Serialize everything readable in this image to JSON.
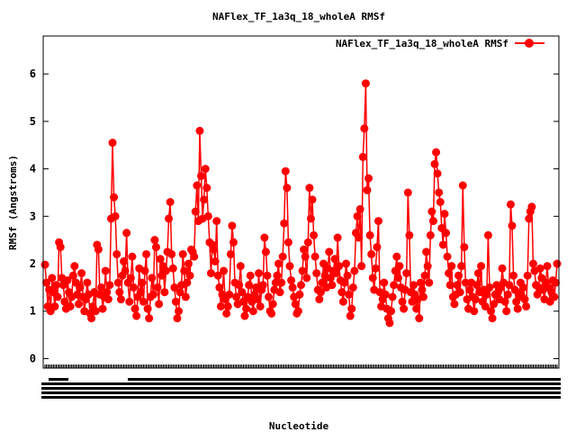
{
  "chart_data": {
    "type": "line",
    "title": "NAFlex_TF_1a3q_18_wholeA RMSf",
    "xlabel": "Nucleotide",
    "ylabel": "RMSf (Angstroms)",
    "ylim": [
      -0.2,
      6.8
    ],
    "yticks": [
      0,
      1,
      2,
      3,
      4,
      5,
      6
    ],
    "grid": false,
    "legend_position": "top-right",
    "x_tick_labels_legible": false,
    "series": [
      {
        "name": "NAFlex_TF_1a3q_18_wholeA RMSf",
        "color": "#ff0000",
        "values": [
          1.98,
          1.6,
          1.1,
          1.45,
          1.0,
          1.7,
          1.4,
          1.1,
          1.55,
          1.3,
          2.45,
          2.35,
          1.7,
          1.55,
          1.2,
          1.05,
          1.65,
          1.4,
          1.1,
          1.3,
          1.75,
          1.95,
          1.6,
          1.35,
          1.15,
          1.5,
          1.8,
          1.3,
          1.0,
          1.25,
          1.6,
          1.35,
          0.95,
          0.85,
          1.1,
          1.4,
          1.0,
          2.4,
          2.3,
          1.35,
          1.5,
          1.05,
          1.3,
          1.85,
          1.4,
          1.25,
          1.55,
          2.95,
          4.55,
          3.4,
          3.0,
          2.2,
          1.6,
          1.4,
          1.25,
          1.75,
          2.05,
          1.85,
          2.65,
          1.6,
          1.2,
          1.7,
          2.15,
          1.5,
          1.05,
          0.9,
          1.3,
          1.9,
          1.4,
          1.6,
          1.2,
          1.85,
          2.2,
          1.05,
          0.85,
          1.3,
          1.7,
          1.35,
          2.5,
          2.35,
          1.5,
          1.15,
          2.1,
          1.75,
          1.95,
          1.4,
          1.85,
          2.25,
          2.95,
          3.3,
          2.2,
          1.9,
          1.5,
          1.2,
          0.85,
          1.0,
          1.4,
          1.55,
          2.2,
          1.85,
          1.3,
          1.6,
          2.0,
          1.75,
          2.3,
          2.25,
          2.15,
          3.1,
          3.65,
          2.9,
          4.8,
          3.85,
          2.95,
          3.35,
          4.0,
          3.6,
          3.0,
          2.45,
          1.8,
          2.4,
          2.3,
          2.05,
          2.9,
          1.75,
          1.5,
          1.1,
          1.35,
          1.85,
          1.25,
          0.95,
          1.1,
          1.35,
          2.2,
          2.8,
          2.45,
          1.6,
          1.3,
          1.15,
          1.55,
          1.95,
          1.4,
          1.2,
          0.9,
          1.05,
          1.3,
          1.55,
          1.75,
          1.2,
          1.0,
          1.35,
          1.5,
          1.25,
          1.8,
          1.1,
          1.45,
          1.55,
          2.55,
          2.25,
          1.75,
          1.3,
          1.0,
          0.95,
          1.15,
          1.45,
          1.6,
          1.75,
          2.0,
          1.4,
          1.6,
          2.15,
          2.85,
          3.95,
          3.6,
          2.45,
          1.95,
          1.65,
          1.5,
          1.3,
          1.15,
          0.95,
          1.0,
          1.35,
          1.55,
          1.85,
          2.3,
          2.15,
          1.7,
          2.45,
          3.6,
          2.95,
          3.35,
          2.6,
          2.15,
          1.8,
          1.45,
          1.25,
          1.4,
          1.6,
          2.0,
          1.75,
          1.5,
          1.9,
          2.25,
          1.7,
          1.55,
          1.85,
          2.1,
          1.8,
          2.55,
          1.95,
          1.65,
          1.4,
          1.2,
          1.6,
          2.0,
          1.75,
          1.35,
          0.9,
          1.05,
          1.5,
          1.85,
          2.65,
          3.0,
          2.55,
          3.15,
          1.95,
          4.25,
          4.85,
          5.8,
          3.55,
          3.8,
          2.6,
          2.2,
          1.7,
          1.45,
          1.9,
          2.35,
          2.9,
          1.4,
          1.1,
          1.25,
          1.6,
          1.35,
          1.05,
          0.85,
          0.75,
          1.0,
          1.3,
          1.55,
          1.85,
          2.15,
          1.7,
          1.95,
          1.5,
          1.2,
          1.05,
          1.45,
          1.8,
          3.5,
          2.6,
          1.4,
          1.2,
          1.55,
          1.35,
          1.05,
          1.25,
          0.85,
          1.6,
          1.45,
          1.3,
          1.75,
          2.25,
          1.95,
          1.6,
          2.6,
          3.1,
          2.9,
          4.1,
          4.35,
          3.9,
          3.5,
          3.3,
          2.75,
          2.4,
          3.05,
          2.65,
          2.15,
          1.8,
          1.55,
          1.95,
          1.3,
          1.15,
          1.35,
          1.55,
          1.75,
          1.4,
          1.95,
          3.65,
          2.35,
          1.6,
          1.25,
          1.05,
          1.45,
          1.6,
          1.3,
          1.0,
          1.25,
          1.55,
          1.8,
          1.4,
          1.95,
          1.2,
          1.45,
          1.1,
          1.35,
          2.6,
          1.5,
          1.0,
          0.85,
          1.15,
          1.35,
          1.55,
          1.4,
          1.25,
          1.5,
          1.9,
          1.6,
          1.2,
          1.0,
          1.35,
          1.55,
          3.25,
          2.8,
          1.75,
          1.45,
          1.2,
          1.05,
          1.35,
          1.6,
          1.3,
          1.5,
          1.25,
          1.1,
          1.75,
          2.95,
          3.1,
          3.2,
          2.0,
          1.85,
          1.55,
          1.35,
          1.5,
          1.9,
          1.7,
          1.45,
          1.25,
          1.6,
          1.95,
          1.5,
          1.2,
          1.4,
          1.65,
          1.3,
          1.6,
          2.0
        ]
      }
    ]
  }
}
